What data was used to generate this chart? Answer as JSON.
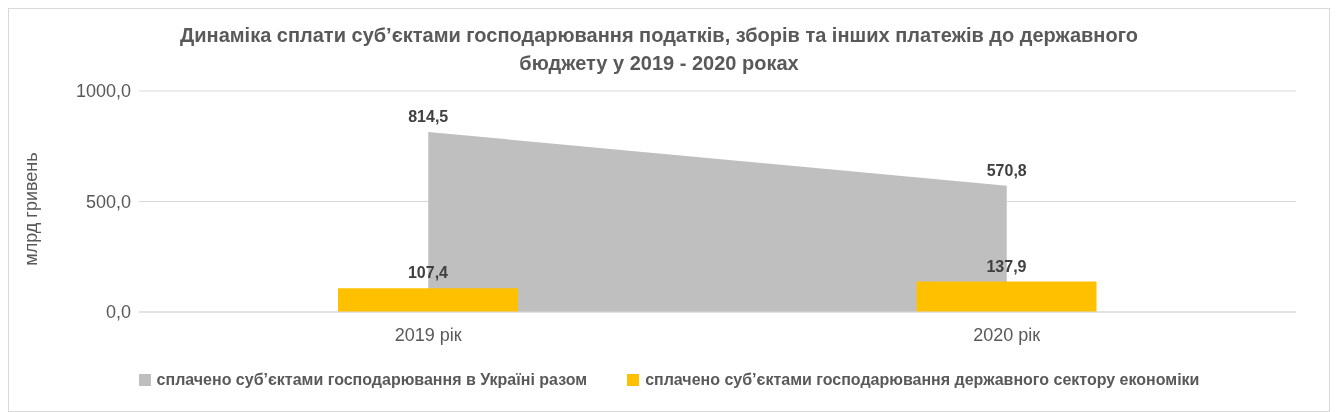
{
  "chart_data": {
    "type": "bar",
    "title": "Динаміка сплати суб’єктами господарювання податків, зборів та інших платежів до державного бюджету у 2019 - 2020 роках",
    "ylabel": "млрд гривень",
    "categories": [
      "2019 рік",
      "2020 рік"
    ],
    "series": [
      {
        "name": "сплачено суб’єктами господарювання в Україні разом",
        "type": "area",
        "color": "#bfbfbf",
        "values": [
          814.5,
          570.8
        ],
        "value_labels": [
          "814,5",
          "570,8"
        ]
      },
      {
        "name": "сплачено суб’єктами господарювання державного сектору економіки",
        "color": "#ffc000",
        "values": [
          107.4,
          137.9
        ],
        "value_labels": [
          "107,4",
          "137,9"
        ]
      }
    ],
    "ylim": [
      0,
      1000
    ],
    "yticks": [
      {
        "value": 0,
        "label": "0,0"
      },
      {
        "value": 500,
        "label": "500,0"
      },
      {
        "value": 1000,
        "label": "1000,0"
      }
    ],
    "grid": "y",
    "legend": "bottom"
  }
}
